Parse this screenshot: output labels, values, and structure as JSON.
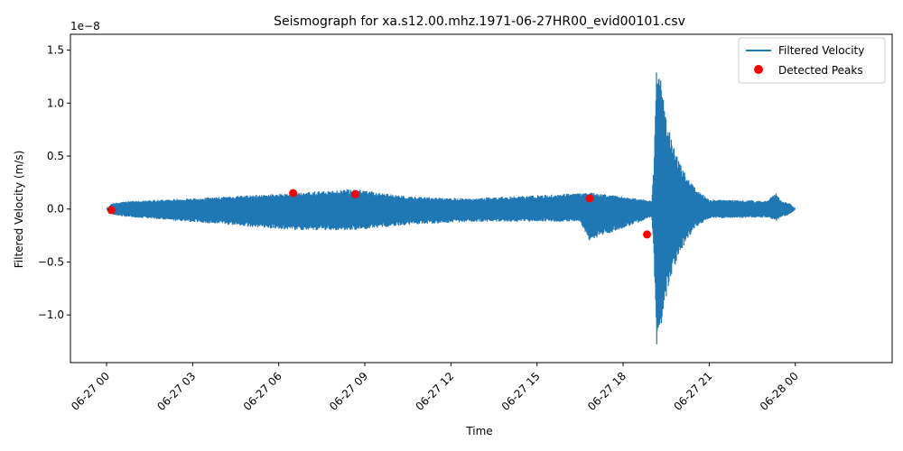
{
  "chart_data": {
    "type": "line",
    "title": "Seismograph for xa.s12.00.mhz.1971-06-27HR00_evid00101.csv",
    "xlabel": "Time",
    "ylabel": "Filtered Velocity (m/s)",
    "y_scale_label": "1e−8",
    "xlim": [
      "2026-06-26 23:18",
      "2026-06-28 01:00"
    ],
    "ylim": [
      -1.45,
      1.65
    ],
    "y_unit_multiplier": 1e-08,
    "x_ticks": [
      "06-27 00",
      "06-27 03",
      "06-27 06",
      "06-27 09",
      "06-27 12",
      "06-27 15",
      "06-27 18",
      "06-27 21",
      "06-28 00"
    ],
    "y_ticks": [
      "−1.0",
      "−0.5",
      "0.0",
      "0.5",
      "1.0",
      "1.5"
    ],
    "grid": false,
    "legend_position": "top-right",
    "series": [
      {
        "name": "Filtered Velocity",
        "kind": "line",
        "color": "#1f77b4",
        "envelope_time": [
          "06-27 00:00",
          "06-27 00:10",
          "06-27 00:30",
          "06-27 06:30",
          "06-27 08:40",
          "06-27 10:30",
          "06-27 12:40",
          "06-27 16:30",
          "06-27 16:50",
          "06-27 19:00",
          "06-27 19:05",
          "06-27 19:10",
          "06-27 19:20",
          "06-27 19:30",
          "06-27 19:45",
          "06-27 20:00",
          "06-27 20:15",
          "06-27 20:30",
          "06-27 21:00",
          "06-27 23:00",
          "06-27 23:20",
          "06-27 23:30",
          "06-27 23:50",
          "06-28 00:00"
        ],
        "envelope_max": [
          0.0,
          0.05,
          0.07,
          0.15,
          0.19,
          0.12,
          0.1,
          0.15,
          0.16,
          0.08,
          0.47,
          1.5,
          1.25,
          0.85,
          0.6,
          0.42,
          0.3,
          0.2,
          0.09,
          0.08,
          0.15,
          0.08,
          0.05,
          0.0
        ],
        "envelope_min": [
          0.0,
          -0.05,
          -0.07,
          -0.2,
          -0.2,
          -0.15,
          -0.12,
          -0.12,
          -0.3,
          -0.08,
          -0.5,
          -1.32,
          -1.15,
          -0.85,
          -0.6,
          -0.4,
          -0.28,
          -0.18,
          -0.09,
          -0.08,
          -0.12,
          -0.08,
          -0.05,
          0.0
        ]
      },
      {
        "name": "Detected Peaks",
        "kind": "scatter",
        "color": "#ff0000",
        "points": [
          {
            "x": "06-27 00:10",
            "y": -0.01
          },
          {
            "x": "06-27 06:30",
            "y": 0.15
          },
          {
            "x": "06-27 08:40",
            "y": 0.14
          },
          {
            "x": "06-27 16:50",
            "y": 0.1
          },
          {
            "x": "06-27 18:50",
            "y": -0.24
          }
        ]
      }
    ]
  }
}
